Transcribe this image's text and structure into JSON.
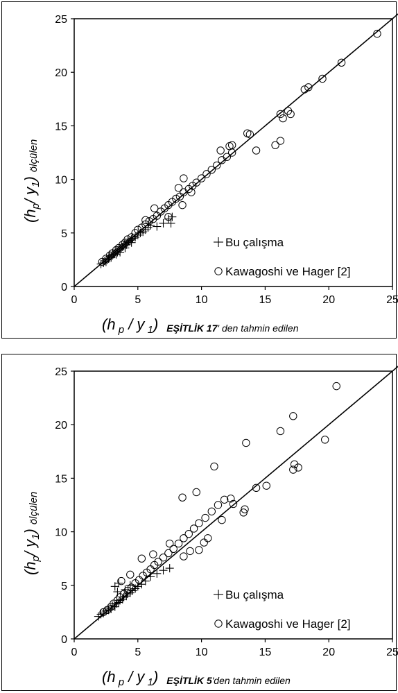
{
  "chart_data": [
    {
      "type": "scatter",
      "xlim": [
        0,
        25
      ],
      "ylim": [
        0,
        25
      ],
      "xticks": [
        "0",
        "5",
        "10",
        "15",
        "20",
        "25"
      ],
      "yticks": [
        "0",
        "5",
        "10",
        "15",
        "20",
        "25"
      ],
      "xlabel": {
        "main": "(h p / y 1)",
        "bold": "EŞİTLİK 17",
        "rest": "' den tahmin edilen"
      },
      "ylabel": {
        "main": "(hp/  y1)",
        "sub": "ölçülen"
      },
      "legend": {
        "position": "bottom-right"
      },
      "reference_line": "y = x",
      "series": [
        {
          "name": "Bu çalışma",
          "marker": "plus",
          "points": [
            [
              2.1,
              2.1
            ],
            [
              2.3,
              2.2
            ],
            [
              2.4,
              2.4
            ],
            [
              2.5,
              2.3
            ],
            [
              2.6,
              2.5
            ],
            [
              2.7,
              2.6
            ],
            [
              2.8,
              2.8
            ],
            [
              2.9,
              2.7
            ],
            [
              3.0,
              2.9
            ],
            [
              3.1,
              3.0
            ],
            [
              3.2,
              3.1
            ],
            [
              3.3,
              3.3
            ],
            [
              3.4,
              3.2
            ],
            [
              3.5,
              3.4
            ],
            [
              3.6,
              3.5
            ],
            [
              3.7,
              3.6
            ],
            [
              3.8,
              3.7
            ],
            [
              3.9,
              3.8
            ],
            [
              4.0,
              4.0
            ],
            [
              4.1,
              3.9
            ],
            [
              4.2,
              4.1
            ],
            [
              4.3,
              4.2
            ],
            [
              4.4,
              4.3
            ],
            [
              4.5,
              4.4
            ],
            [
              4.6,
              4.5
            ],
            [
              4.8,
              4.6
            ],
            [
              5.0,
              4.8
            ],
            [
              5.2,
              5.0
            ],
            [
              5.4,
              5.1
            ],
            [
              5.6,
              5.3
            ],
            [
              5.8,
              5.5
            ],
            [
              6.0,
              5.7
            ],
            [
              6.5,
              5.6
            ],
            [
              7.0,
              5.9
            ],
            [
              7.4,
              6.3
            ],
            [
              7.7,
              6.5
            ],
            [
              7.6,
              5.9
            ],
            [
              3.3,
              3.0
            ],
            [
              3.6,
              3.2
            ],
            [
              4.0,
              3.6
            ],
            [
              4.5,
              4.1
            ]
          ]
        },
        {
          "name": "Kawagoshi ve Hager [2]",
          "marker": "circle",
          "points": [
            [
              2.2,
              2.3
            ],
            [
              2.5,
              2.6
            ],
            [
              2.8,
              2.9
            ],
            [
              3.0,
              3.1
            ],
            [
              3.3,
              3.4
            ],
            [
              3.5,
              3.6
            ],
            [
              3.8,
              3.9
            ],
            [
              4.0,
              4.1
            ],
            [
              4.2,
              4.4
            ],
            [
              4.5,
              4.6
            ],
            [
              4.8,
              5.0
            ],
            [
              5.0,
              5.3
            ],
            [
              5.3,
              5.5
            ],
            [
              5.6,
              5.8
            ],
            [
              5.9,
              6.1
            ],
            [
              6.2,
              6.3
            ],
            [
              6.5,
              6.6
            ],
            [
              6.8,
              7.0
            ],
            [
              7.1,
              7.3
            ],
            [
              7.4,
              7.6
            ],
            [
              7.7,
              7.9
            ],
            [
              8.0,
              8.2
            ],
            [
              8.3,
              8.4
            ],
            [
              8.6,
              8.8
            ],
            [
              9.0,
              9.1
            ],
            [
              9.3,
              9.4
            ],
            [
              9.6,
              9.7
            ],
            [
              10.0,
              10.1
            ],
            [
              10.4,
              10.5
            ],
            [
              10.8,
              10.9
            ],
            [
              11.2,
              11.3
            ],
            [
              11.6,
              11.8
            ],
            [
              12.0,
              12.1
            ],
            [
              12.4,
              12.5
            ],
            [
              8.2,
              9.2
            ],
            [
              8.6,
              10.1
            ],
            [
              8.5,
              7.6
            ],
            [
              9.2,
              8.8
            ],
            [
              7.4,
              6.5
            ],
            [
              6.3,
              7.3
            ],
            [
              5.6,
              6.2
            ],
            [
              11.5,
              12.7
            ],
            [
              12.2,
              13.1
            ],
            [
              12.4,
              13.2
            ],
            [
              13.6,
              14.3
            ],
            [
              13.8,
              14.2
            ],
            [
              14.3,
              12.7
            ],
            [
              15.8,
              13.2
            ],
            [
              16.2,
              13.6
            ],
            [
              16.2,
              16.1
            ],
            [
              16.4,
              15.7
            ],
            [
              16.8,
              16.4
            ],
            [
              17.0,
              16.1
            ],
            [
              18.1,
              18.4
            ],
            [
              18.4,
              18.6
            ],
            [
              19.5,
              19.4
            ],
            [
              21.0,
              20.9
            ],
            [
              23.8,
              23.6
            ]
          ]
        }
      ]
    },
    {
      "type": "scatter",
      "xlim": [
        0,
        25
      ],
      "ylim": [
        0,
        25
      ],
      "xticks": [
        "0",
        "5",
        "10",
        "15",
        "20",
        "25"
      ],
      "yticks": [
        "0",
        "5",
        "10",
        "15",
        "20",
        "25"
      ],
      "xlabel": {
        "main": "(h p / y 1)",
        "bold": "EŞİTLİK 5",
        "rest": "'den tahmin edilen"
      },
      "ylabel": {
        "main": "(hp/ y1)",
        "sub": "ölçülen"
      },
      "legend": {
        "position": "bottom-right"
      },
      "reference_line": "y = x",
      "series": [
        {
          "name": "Bu çalışma",
          "marker": "plus",
          "points": [
            [
              1.9,
              2.1
            ],
            [
              2.1,
              2.3
            ],
            [
              2.3,
              2.4
            ],
            [
              2.5,
              2.6
            ],
            [
              2.7,
              2.7
            ],
            [
              2.9,
              2.8
            ],
            [
              3.0,
              3.1
            ],
            [
              3.2,
              3.0
            ],
            [
              3.3,
              3.3
            ],
            [
              3.5,
              3.4
            ],
            [
              3.6,
              3.6
            ],
            [
              3.8,
              3.7
            ],
            [
              3.9,
              3.9
            ],
            [
              4.1,
              4.0
            ],
            [
              4.2,
              4.2
            ],
            [
              4.4,
              4.3
            ],
            [
              4.6,
              4.5
            ],
            [
              4.8,
              4.7
            ],
            [
              5.0,
              4.9
            ],
            [
              5.3,
              5.1
            ],
            [
              5.6,
              5.4
            ],
            [
              6.0,
              5.8
            ],
            [
              6.5,
              6.1
            ],
            [
              7.0,
              6.4
            ],
            [
              7.5,
              6.6
            ],
            [
              3.2,
              4.9
            ],
            [
              3.5,
              5.2
            ],
            [
              3.4,
              4.4
            ],
            [
              4.0,
              4.6
            ],
            [
              4.4,
              5.0
            ]
          ]
        },
        {
          "name": "Kawagoshi ve Hager [2]",
          "marker": "circle",
          "points": [
            [
              2.3,
              2.5
            ],
            [
              2.6,
              2.7
            ],
            [
              2.9,
              3.0
            ],
            [
              3.1,
              3.3
            ],
            [
              3.4,
              3.6
            ],
            [
              3.6,
              3.9
            ],
            [
              3.9,
              4.2
            ],
            [
              4.2,
              4.5
            ],
            [
              4.5,
              4.8
            ],
            [
              4.8,
              5.2
            ],
            [
              5.1,
              5.5
            ],
            [
              5.4,
              5.9
            ],
            [
              5.7,
              6.2
            ],
            [
              6.0,
              6.5
            ],
            [
              6.3,
              6.9
            ],
            [
              6.6,
              7.2
            ],
            [
              7.0,
              7.6
            ],
            [
              7.4,
              8.0
            ],
            [
              7.8,
              8.4
            ],
            [
              8.2,
              8.9
            ],
            [
              8.6,
              9.4
            ],
            [
              9.0,
              9.8
            ],
            [
              9.4,
              10.3
            ],
            [
              9.8,
              10.8
            ],
            [
              10.3,
              11.3
            ],
            [
              10.8,
              11.9
            ],
            [
              11.3,
              12.5
            ],
            [
              11.8,
              13.0
            ],
            [
              12.3,
              13.1
            ],
            [
              3.7,
              5.4
            ],
            [
              4.4,
              6.0
            ],
            [
              5.3,
              7.5
            ],
            [
              6.2,
              7.9
            ],
            [
              7.5,
              8.9
            ],
            [
              8.5,
              13.2
            ],
            [
              9.6,
              13.7
            ],
            [
              11.0,
              16.1
            ],
            [
              10.5,
              9.4
            ],
            [
              11.6,
              11.1
            ],
            [
              12.5,
              12.6
            ],
            [
              13.3,
              11.8
            ],
            [
              13.4,
              12.1
            ],
            [
              13.5,
              18.3
            ],
            [
              14.3,
              14.1
            ],
            [
              15.1,
              14.3
            ],
            [
              16.2,
              19.4
            ],
            [
              17.2,
              15.8
            ],
            [
              17.3,
              16.3
            ],
            [
              17.6,
              16.0
            ],
            [
              17.2,
              20.8
            ],
            [
              19.7,
              18.6
            ],
            [
              20.6,
              23.6
            ],
            [
              8.6,
              7.7
            ],
            [
              9.1,
              8.2
            ],
            [
              9.8,
              8.3
            ],
            [
              10.2,
              9.0
            ]
          ]
        }
      ]
    }
  ]
}
